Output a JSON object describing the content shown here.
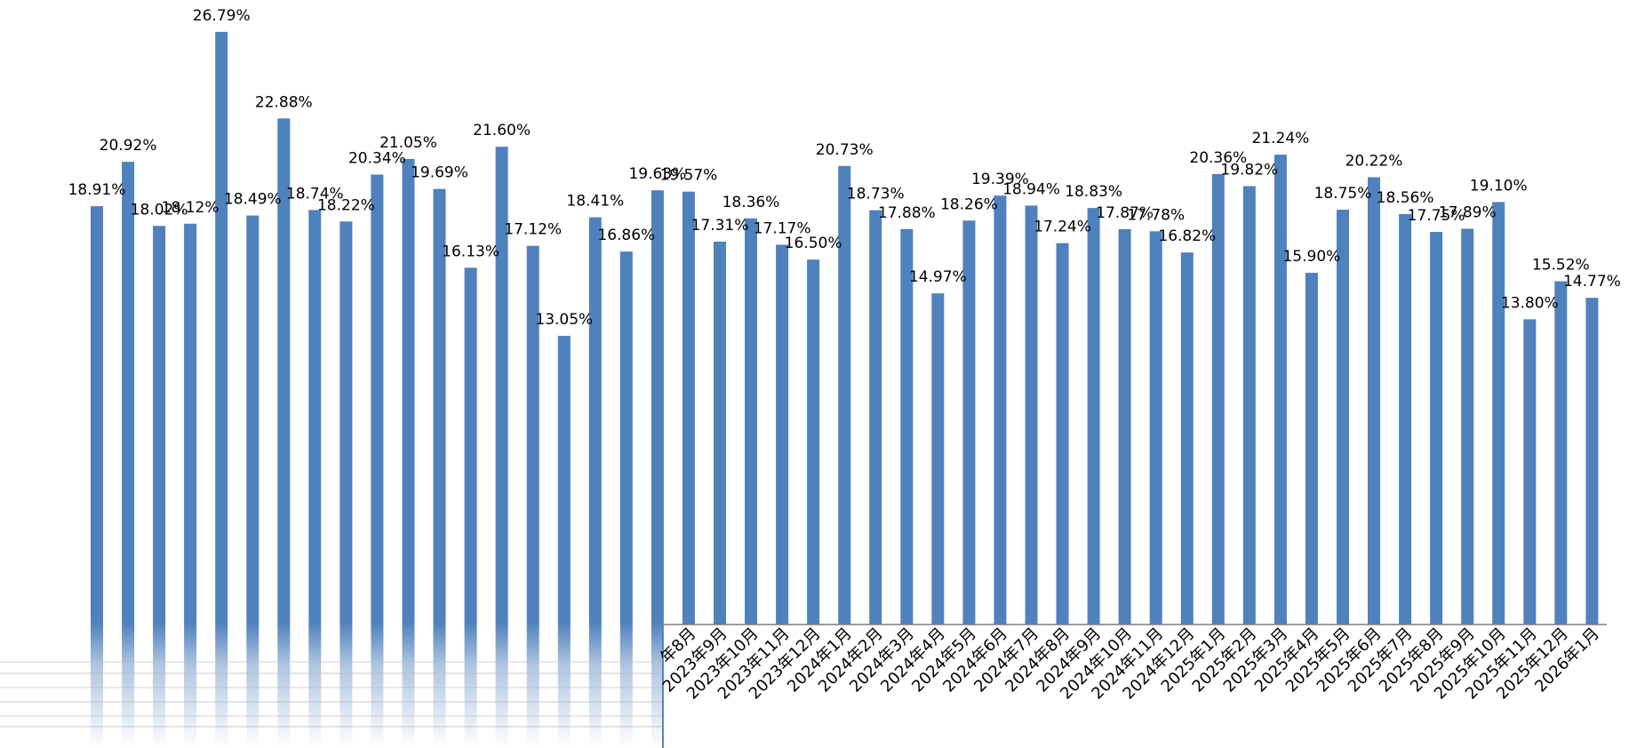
{
  "chart_data": {
    "type": "bar",
    "title": "",
    "xlabel": "",
    "ylabel": "",
    "ylim": [
      0,
      30
    ],
    "grid": false,
    "legend": "none",
    "bar_color": "#4F81BD",
    "value_format": "percent-2dp",
    "categories": [
      "",
      "",
      "",
      "",
      "",
      "",
      "",
      "",
      "",
      "",
      "",
      "",
      "",
      "",
      "",
      "",
      "",
      "",
      "",
      "年8月",
      "2023年9月",
      "2023年10月",
      "2023年11月",
      "2023年12月",
      "2024年1月",
      "2024年2月",
      "2024年3月",
      "2024年4月",
      "2024年5月",
      "2024年6月",
      "2024年7月",
      "2024年8月",
      "2024年9月",
      "2024年10月",
      "2024年11月",
      "2024年12月",
      "2025年1月",
      "2025年2月",
      "2025年3月",
      "2025年4月",
      "2025年5月",
      "2025年6月",
      "2025年7月",
      "2025年8月",
      "2025年9月",
      "2025年10月",
      "2025年11月",
      "2025年12月",
      "2026年1月"
    ],
    "labels": [
      "18.91%",
      "20.92%",
      "18.02%",
      "18.12%",
      "26.79%",
      "18.49%",
      "22.88%",
      "18.74%",
      "18.22%",
      "20.34%",
      "21.05%",
      "19.69%",
      "16.13%",
      "21.60%",
      "17.12%",
      "13.05%",
      "18.41%",
      "16.86%",
      "19.63%",
      "19.57%",
      "17.31%",
      "18.36%",
      "17.17%",
      "16.50%",
      "20.73%",
      "18.73%",
      "17.88%",
      "14.97%",
      "18.26%",
      "19.39%",
      "18.94%",
      "17.24%",
      "18.83%",
      "17.87%",
      "17.78%",
      "16.82%",
      "20.36%",
      "19.82%",
      "21.24%",
      "15.90%",
      "18.75%",
      "20.22%",
      "18.56%",
      "17.75%",
      "17.89%",
      "19.10%",
      "13.80%",
      "15.52%",
      "14.77%"
    ],
    "values": [
      18.91,
      20.92,
      18.02,
      18.12,
      26.79,
      18.49,
      22.88,
      18.74,
      18.22,
      20.34,
      21.05,
      19.69,
      16.13,
      21.6,
      17.12,
      13.05,
      18.41,
      16.86,
      19.63,
      19.57,
      17.31,
      18.36,
      17.17,
      16.5,
      20.73,
      18.73,
      17.88,
      14.97,
      18.26,
      19.39,
      18.94,
      17.24,
      18.83,
      17.87,
      17.78,
      16.82,
      20.36,
      19.82,
      21.24,
      15.9,
      18.75,
      20.22,
      18.56,
      17.75,
      17.89,
      19.1,
      13.8,
      15.52,
      14.77
    ]
  }
}
